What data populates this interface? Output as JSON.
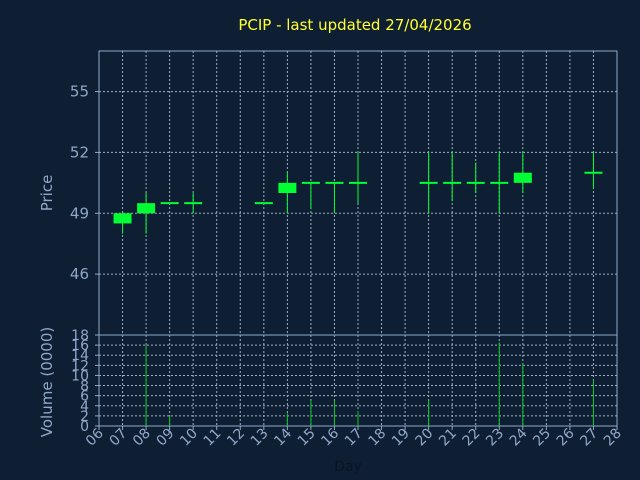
{
  "chart_data": {
    "type": "candlestick",
    "title": "PCIP - last updated 27/04/2026",
    "xlabel": "Day",
    "ylabel": "Price",
    "volume_label": "Volume (0000)",
    "x_ticks": [
      "06",
      "07",
      "08",
      "09",
      "10",
      "11",
      "12",
      "13",
      "14",
      "15",
      "16",
      "17",
      "18",
      "19",
      "20",
      "21",
      "22",
      "23",
      "24",
      "25",
      "26",
      "27",
      "28"
    ],
    "price_ticks": [
      55,
      52,
      49,
      46
    ],
    "price_range": [
      43,
      57
    ],
    "volume_ticks": [
      18,
      16,
      14,
      12,
      10,
      8,
      6,
      4,
      2,
      0
    ],
    "volume_range": [
      0,
      18
    ],
    "grid": true,
    "candles": [
      {
        "day": "07",
        "open": 48.5,
        "high": 49.0,
        "low": 48.0,
        "close": 49.0
      },
      {
        "day": "08",
        "open": 49.0,
        "high": 50.0,
        "low": 48.0,
        "close": 49.5
      },
      {
        "day": "09",
        "open": 49.5,
        "high": 49.5,
        "low": 49.5,
        "close": 49.5
      },
      {
        "day": "10",
        "open": 49.5,
        "high": 50.0,
        "low": 49.0,
        "close": 49.5
      },
      {
        "day": "13",
        "open": 49.5,
        "high": 49.5,
        "low": 49.5,
        "close": 49.5
      },
      {
        "day": "14",
        "open": 50.0,
        "high": 51.0,
        "low": 49.0,
        "close": 50.5
      },
      {
        "day": "15",
        "open": 50.5,
        "high": 50.5,
        "low": 49.2,
        "close": 50.5
      },
      {
        "day": "16",
        "open": 50.5,
        "high": 50.5,
        "low": 49.0,
        "close": 50.5
      },
      {
        "day": "17",
        "open": 50.5,
        "high": 52.0,
        "low": 49.5,
        "close": 50.5
      },
      {
        "day": "20",
        "open": 50.5,
        "high": 52.0,
        "low": 49.0,
        "close": 50.5
      },
      {
        "day": "21",
        "open": 50.5,
        "high": 52.0,
        "low": 49.6,
        "close": 50.5
      },
      {
        "day": "22",
        "open": 50.5,
        "high": 51.5,
        "low": 50.0,
        "close": 50.5
      },
      {
        "day": "23",
        "open": 50.5,
        "high": 52.0,
        "low": 49.0,
        "close": 50.5
      },
      {
        "day": "24",
        "open": 50.5,
        "high": 52.0,
        "low": 50.0,
        "close": 51.0
      },
      {
        "day": "27",
        "open": 51.0,
        "high": 52.0,
        "low": 50.2,
        "close": 51.0
      }
    ],
    "volume": [
      {
        "day": "08",
        "value": 16.0
      },
      {
        "day": "09",
        "value": 2.0
      },
      {
        "day": "14",
        "value": 2.5
      },
      {
        "day": "15",
        "value": 5.0
      },
      {
        "day": "16",
        "value": 5.0
      },
      {
        "day": "17",
        "value": 3.0
      },
      {
        "day": "20",
        "value": 5.0
      },
      {
        "day": "23",
        "value": 16.5
      },
      {
        "day": "24",
        "value": 12.5
      },
      {
        "day": "27",
        "value": 9.0
      }
    ],
    "colors": {
      "background": "#0f1f33",
      "title": "#ffff33",
      "axis_text": "#8fa8c8",
      "frame": "#8fa8c8",
      "grid": "#9fb0c4",
      "up": "#00ff33",
      "volume": "#00cc22"
    }
  }
}
